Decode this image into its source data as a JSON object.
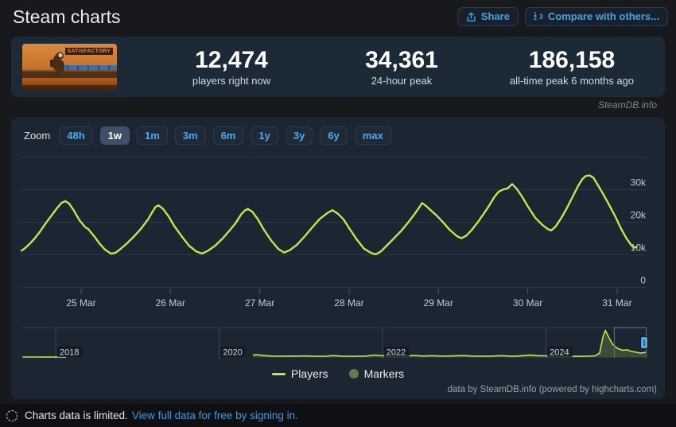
{
  "header": {
    "title": "Steam charts",
    "share_label": "Share",
    "compare_label": "Compare with others...",
    "compare_icon_digits": [
      "1",
      "2",
      "3"
    ]
  },
  "stats": {
    "game_title": "SATISFACTORY",
    "items": [
      {
        "value": "12,474",
        "label": "players right now"
      },
      {
        "value": "34,361",
        "label": "24-hour peak"
      },
      {
        "value": "186,158",
        "label": "all-time peak 6 months ago"
      }
    ]
  },
  "watermark": "SteamDB.info",
  "toolbar": {
    "zoom_label": "Zoom",
    "options": [
      "48h",
      "1w",
      "1m",
      "3m",
      "6m",
      "1y",
      "3y",
      "6y",
      "max"
    ],
    "selected": "1w"
  },
  "legend": {
    "players": "Players",
    "markers": "Markers"
  },
  "credits": "data by SteamDB.info (powered by highcharts.com)",
  "footer": {
    "notice": "Charts data is limited.",
    "link": "View full data for free by signing in."
  },
  "colors": {
    "series_green": "#c2e64c",
    "series_fill": "rgba(194,230,76,0.20)",
    "markers_olive": "#65794b",
    "grid": "#2b3545",
    "axis_label": "#c6cbd1",
    "tick": "#4a5560",
    "nav_grid": "#3a4553",
    "nav_outline": "#5b6877",
    "handle_blue": "#58a7dd",
    "link_blue": "#4ca2e0"
  },
  "chart_data": {
    "type": "line",
    "title": "",
    "xlabel": "",
    "ylabel": "",
    "x_unit": "hours since 24 Mar 00:00",
    "xlim": [
      8,
      176
    ],
    "ylim": [
      0,
      40000
    ],
    "grid": true,
    "legend_position": "bottom-center",
    "x_ticks": [
      {
        "h": 24,
        "label": "25 Mar"
      },
      {
        "h": 48,
        "label": "26 Mar"
      },
      {
        "h": 72,
        "label": "27 Mar"
      },
      {
        "h": 96,
        "label": "28 Mar"
      },
      {
        "h": 120,
        "label": "29 Mar"
      },
      {
        "h": 144,
        "label": "30 Mar"
      },
      {
        "h": 168,
        "label": "31 Mar"
      }
    ],
    "y_ticks": [
      {
        "v": 0,
        "label": "0"
      },
      {
        "v": 10000,
        "label": "10k"
      },
      {
        "v": 20000,
        "label": "20k"
      },
      {
        "v": 30000,
        "label": "30k"
      },
      {
        "v": 40000,
        "label": ""
      }
    ],
    "series": [
      {
        "name": "Players",
        "color": "#c2e64c",
        "points": [
          [
            8,
            11300
          ],
          [
            9,
            12100
          ],
          [
            10,
            13200
          ],
          [
            11.5,
            15000
          ],
          [
            13,
            17200
          ],
          [
            14.5,
            19700
          ],
          [
            16,
            22000
          ],
          [
            17.5,
            24300
          ],
          [
            18.7,
            25900
          ],
          [
            19.7,
            26500
          ],
          [
            20.7,
            25800
          ],
          [
            22,
            23700
          ],
          [
            23.5,
            20700
          ],
          [
            25,
            18600
          ],
          [
            26,
            17800
          ],
          [
            27.5,
            15700
          ],
          [
            29,
            13400
          ],
          [
            30.5,
            11500
          ],
          [
            32,
            10400
          ],
          [
            33.2,
            10600
          ],
          [
            34.5,
            11700
          ],
          [
            36,
            13200
          ],
          [
            38,
            15400
          ],
          [
            40,
            17900
          ],
          [
            42,
            20900
          ],
          [
            43,
            22900
          ],
          [
            44,
            24700
          ],
          [
            44.8,
            25200
          ],
          [
            46,
            24100
          ],
          [
            47.5,
            21800
          ],
          [
            49,
            18900
          ],
          [
            51,
            15700
          ],
          [
            53,
            12800
          ],
          [
            55,
            11000
          ],
          [
            56.5,
            10400
          ],
          [
            58,
            11200
          ],
          [
            60,
            12800
          ],
          [
            62,
            15000
          ],
          [
            64,
            17600
          ],
          [
            65.5,
            19700
          ],
          [
            67,
            22400
          ],
          [
            68,
            23600
          ],
          [
            68.8,
            24100
          ],
          [
            70,
            23200
          ],
          [
            71.5,
            20900
          ],
          [
            73,
            17900
          ],
          [
            75,
            14500
          ],
          [
            77,
            11800
          ],
          [
            78.5,
            10700
          ],
          [
            80,
            11400
          ],
          [
            82,
            13100
          ],
          [
            84,
            15600
          ],
          [
            86,
            18300
          ],
          [
            88,
            20900
          ],
          [
            90,
            22700
          ],
          [
            91.5,
            23700
          ],
          [
            93,
            22600
          ],
          [
            94.5,
            20900
          ],
          [
            96,
            18200
          ],
          [
            98,
            14800
          ],
          [
            100,
            11900
          ],
          [
            102,
            10500
          ],
          [
            103.2,
            10200
          ],
          [
            104.5,
            11000
          ],
          [
            106,
            12700
          ],
          [
            108,
            15000
          ],
          [
            110,
            17400
          ],
          [
            112,
            20100
          ],
          [
            113.5,
            22400
          ],
          [
            115,
            24800
          ],
          [
            115.6,
            25900
          ],
          [
            116.6,
            25100
          ],
          [
            118,
            23600
          ],
          [
            119.5,
            22100
          ],
          [
            121,
            20300
          ],
          [
            123,
            17700
          ],
          [
            125,
            15700
          ],
          [
            126.2,
            15100
          ],
          [
            127.5,
            15900
          ],
          [
            129,
            17700
          ],
          [
            130.5,
            19900
          ],
          [
            132,
            22300
          ],
          [
            133.5,
            24900
          ],
          [
            135,
            27700
          ],
          [
            136.2,
            29400
          ],
          [
            137.5,
            30100
          ],
          [
            138.6,
            30400
          ],
          [
            139.8,
            31700
          ],
          [
            141,
            30300
          ],
          [
            142.5,
            27800
          ],
          [
            144,
            24900
          ],
          [
            146,
            21400
          ],
          [
            148,
            19100
          ],
          [
            149.4,
            17900
          ],
          [
            150.3,
            17500
          ],
          [
            151.5,
            18700
          ],
          [
            153,
            21300
          ],
          [
            154.5,
            24300
          ],
          [
            156,
            27700
          ],
          [
            157.5,
            31100
          ],
          [
            158.7,
            33300
          ],
          [
            159.6,
            34200
          ],
          [
            160.6,
            34361
          ],
          [
            161.6,
            33700
          ],
          [
            163,
            31100
          ],
          [
            164.5,
            28200
          ],
          [
            166,
            25000
          ],
          [
            167.5,
            21800
          ],
          [
            169,
            18200
          ],
          [
            170.5,
            15100
          ],
          [
            171.8,
            13000
          ],
          [
            172.6,
            12200
          ],
          [
            173.3,
            12474
          ]
        ]
      },
      {
        "name": "Markers",
        "color": "#65794b",
        "points": []
      }
    ],
    "navigator": {
      "xlim_years": [
        2017.58,
        2025.23
      ],
      "ylim": [
        0,
        186158
      ],
      "x_ticks": [
        {
          "year": 2018,
          "label": "2018"
        },
        {
          "year": 2020,
          "label": "2020"
        },
        {
          "year": 2022,
          "label": "2022"
        },
        {
          "year": 2024,
          "label": "2024"
        }
      ],
      "selection": {
        "from_year": 2024.84,
        "to_year": 2025.23
      },
      "points": [
        [
          2017.6,
          2500
        ],
        [
          2017.75,
          2800
        ],
        [
          2017.9,
          2400
        ],
        [
          2018.05,
          2600
        ],
        [
          2018.12,
          2300
        ],
        null,
        [
          2020.42,
          16000
        ],
        [
          2020.47,
          19000
        ],
        [
          2020.55,
          12500
        ],
        [
          2020.65,
          9500
        ],
        [
          2020.8,
          8500
        ],
        [
          2020.95,
          9500
        ],
        [
          2021.05,
          10500
        ],
        [
          2021.15,
          8500
        ],
        [
          2021.3,
          8000
        ],
        [
          2021.4,
          12500
        ],
        [
          2021.5,
          9000
        ],
        [
          2021.65,
          8000
        ],
        [
          2021.8,
          9500
        ],
        [
          2021.9,
          16500
        ],
        [
          2021.97,
          13500
        ],
        [
          2022.05,
          10000
        ],
        [
          2022.15,
          9000
        ],
        [
          2022.3,
          10500
        ],
        [
          2022.4,
          13500
        ],
        [
          2022.5,
          9500
        ],
        [
          2022.6,
          12000
        ],
        [
          2022.7,
          9800
        ],
        [
          2022.8,
          9200
        ],
        [
          2022.9,
          11500
        ],
        [
          2023.0,
          12800
        ],
        [
          2023.1,
          9500
        ],
        [
          2023.2,
          8600
        ],
        [
          2023.35,
          9500
        ],
        [
          2023.45,
          11800
        ],
        [
          2023.55,
          9200
        ],
        [
          2023.65,
          8800
        ],
        [
          2023.8,
          17000
        ],
        [
          2023.9,
          12200
        ],
        [
          2024.0,
          10800
        ],
        [
          2024.1,
          8800
        ],
        [
          2024.25,
          7600
        ],
        [
          2024.4,
          7800
        ],
        [
          2024.5,
          8300
        ],
        [
          2024.6,
          10500
        ],
        [
          2024.66,
          30000
        ],
        [
          2024.7,
          140000
        ],
        [
          2024.73,
          186158
        ],
        [
          2024.77,
          140000
        ],
        [
          2024.82,
          90000
        ],
        [
          2024.88,
          62000
        ],
        [
          2024.94,
          50000
        ],
        [
          2025.0,
          52000
        ],
        [
          2025.04,
          43000
        ],
        [
          2025.1,
          36000
        ],
        [
          2025.16,
          30000
        ],
        [
          2025.22,
          34361
        ]
      ]
    }
  }
}
